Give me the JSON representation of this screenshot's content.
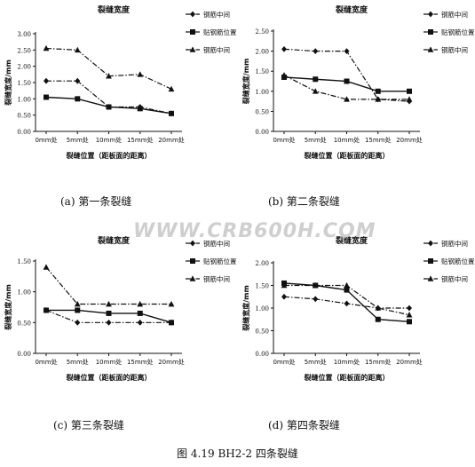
{
  "figure_title": "图 4.19   BH2-2  四条裂缝",
  "watermark": "WWW.CRB600H.COM",
  "chart_data": [
    {
      "type": "line",
      "panel_caption": "(a)   第一条裂缝",
      "title": "裂缝宽度",
      "xlabel": "裂缝位置（距板面的距离）",
      "ylabel": "裂缝宽度/mm",
      "categories": [
        "0mm处",
        "5mm处",
        "10mm处",
        "15mm处",
        "20mm处"
      ],
      "ylim": [
        0,
        3
      ],
      "yticks": [
        "0.00",
        "0.50",
        "1.00",
        "1.50",
        "2.00",
        "2.50",
        "3.00"
      ],
      "grid": false,
      "legend_position": "right",
      "series": [
        {
          "name": "钢筋中间",
          "marker": "diamond",
          "dash": "dashdot",
          "values": [
            1.55,
            1.55,
            0.75,
            0.75,
            0.55
          ]
        },
        {
          "name": "贴钢筋位置",
          "marker": "square",
          "dash": "solid",
          "values": [
            1.05,
            1.0,
            0.75,
            0.7,
            0.55
          ]
        },
        {
          "name": "钢筋中间",
          "marker": "triangle",
          "dash": "dashdot",
          "values": [
            2.55,
            2.5,
            1.7,
            1.75,
            1.3
          ]
        }
      ]
    },
    {
      "type": "line",
      "panel_caption": "(b)   第二条裂缝",
      "title": "裂缝宽度",
      "xlabel": "裂缝位置（距板面的距离）",
      "ylabel": "裂缝宽度/mm",
      "categories": [
        "0mm处",
        "5mm处",
        "10mm处",
        "15mm处",
        "20mm处"
      ],
      "ylim": [
        0,
        2.5
      ],
      "yticks": [
        "0.00",
        "0.50",
        "1.00",
        "1.50",
        "2.00",
        "2.50"
      ],
      "grid": false,
      "legend_position": "right",
      "series": [
        {
          "name": "钢筋中间",
          "marker": "diamond",
          "dash": "dashdot",
          "values": [
            2.05,
            2.0,
            2.0,
            0.8,
            0.75
          ]
        },
        {
          "name": "贴钢筋位置",
          "marker": "square",
          "dash": "solid",
          "values": [
            1.35,
            1.3,
            1.25,
            1.0,
            1.0
          ]
        },
        {
          "name": "钢筋中间",
          "marker": "triangle",
          "dash": "dashdot",
          "values": [
            1.4,
            1.0,
            0.8,
            0.8,
            0.8
          ]
        }
      ]
    },
    {
      "type": "line",
      "panel_caption": "(c)   第三条裂缝",
      "title": "裂缝宽度",
      "xlabel": "裂缝位置（距板面的距离）",
      "ylabel": "裂缝宽度/mm",
      "categories": [
        "0mm处",
        "5mm处",
        "10mm处",
        "15mm处",
        "20mm处"
      ],
      "ylim": [
        0,
        1.5
      ],
      "yticks": [
        "0.00",
        "0.50",
        "1.00",
        "1.50"
      ],
      "grid": false,
      "legend_position": "right",
      "series": [
        {
          "name": "钢筋中间",
          "marker": "diamond",
          "dash": "dashdot",
          "values": [
            0.7,
            0.5,
            0.5,
            0.5,
            0.5
          ]
        },
        {
          "name": "贴钢筋位置",
          "marker": "square",
          "dash": "solid",
          "values": [
            0.7,
            0.7,
            0.65,
            0.65,
            0.5
          ]
        },
        {
          "name": "钢筋中间",
          "marker": "triangle",
          "dash": "dashdot",
          "values": [
            1.4,
            0.8,
            0.8,
            0.8,
            0.8
          ]
        }
      ]
    },
    {
      "type": "line",
      "panel_caption": "(d)   第四条裂缝",
      "title": "裂缝宽度",
      "xlabel": "裂缝位置（距板面的距离）",
      "ylabel": "裂缝宽度/mm",
      "categories": [
        "0mm处",
        "5mm处",
        "10mm处",
        "15mm处",
        "20mm处"
      ],
      "ylim": [
        0,
        2
      ],
      "yticks": [
        "0.00",
        "0.50",
        "1.00",
        "1.50",
        "2.00"
      ],
      "grid": false,
      "legend_position": "right",
      "series": [
        {
          "name": "钢筋中间",
          "marker": "diamond",
          "dash": "dashdot",
          "values": [
            1.25,
            1.2,
            1.1,
            1.0,
            1.0
          ]
        },
        {
          "name": "贴钢筋位置",
          "marker": "square",
          "dash": "solid",
          "values": [
            1.55,
            1.5,
            1.4,
            0.75,
            0.7
          ]
        },
        {
          "name": "钢筋中间",
          "marker": "triangle",
          "dash": "dashdot",
          "values": [
            1.5,
            1.5,
            1.5,
            1.0,
            0.85
          ]
        }
      ]
    }
  ]
}
